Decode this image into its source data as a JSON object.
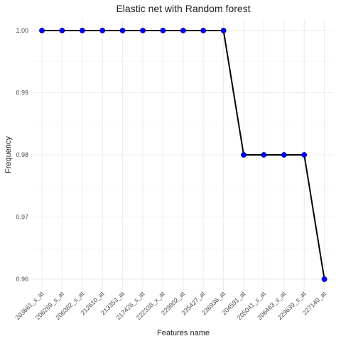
{
  "chart_data": {
    "type": "line",
    "title": "Elastic net  with Random forest",
    "xlabel": "Features name",
    "ylabel": "Frequency",
    "categories": [
      "203661_s_at",
      "206289_s_at",
      "206382_s_at",
      "212610_at",
      "213353_at",
      "217428_s_at",
      "222338_x_at",
      "229802_at",
      "235427_at",
      "236936_at",
      "204591_at",
      "205041_s_at",
      "206463_s_at",
      "229639_s_at",
      "227140_at"
    ],
    "values": [
      1.0,
      1.0,
      1.0,
      1.0,
      1.0,
      1.0,
      1.0,
      1.0,
      1.0,
      1.0,
      0.98,
      0.98,
      0.98,
      0.98,
      0.96
    ],
    "ylim": [
      0.96,
      1.0
    ],
    "yticks": [
      0.96,
      0.97,
      0.98,
      0.99,
      1.0
    ],
    "ytick_labels": [
      "0.96",
      "0.97",
      "0.98",
      "0.99",
      "1.00"
    ],
    "grid": true,
    "line_color": "#000000",
    "marker_color": "#0000ff"
  }
}
